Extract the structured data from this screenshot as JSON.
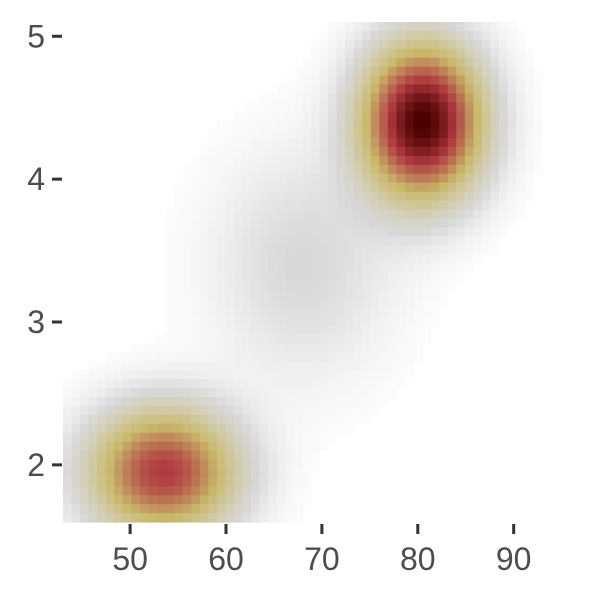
{
  "chart_data": {
    "type": "heatmap",
    "title": "",
    "xlabel": "",
    "ylabel": "",
    "xlim": [
      43,
      96.5
    ],
    "ylim": [
      1.6,
      5.1
    ],
    "x_ticks": [
      "50",
      "60",
      "70",
      "80",
      "90"
    ],
    "y_ticks": [
      "2",
      "3",
      "4",
      "5"
    ],
    "x_tick_values": [
      50,
      60,
      70,
      80,
      90
    ],
    "y_tick_values": [
      2,
      3,
      4,
      5
    ],
    "grid": false,
    "legend": "none",
    "colormap": [
      "#ffffff",
      "#d8d8d8",
      "#c9b96a",
      "#b03a40",
      "#4a0000"
    ],
    "density_peaks": [
      {
        "x": 80.5,
        "y": 4.4,
        "density": 1.0,
        "sigma_x": 4.2,
        "sigma_y": 0.36
      },
      {
        "x": 53.5,
        "y": 1.95,
        "density": 0.72,
        "sigma_x": 5.2,
        "sigma_y": 0.3
      },
      {
        "x": 68,
        "y": 3.4,
        "density": 0.12,
        "sigma_x": 6.5,
        "sigma_y": 0.55
      }
    ]
  }
}
